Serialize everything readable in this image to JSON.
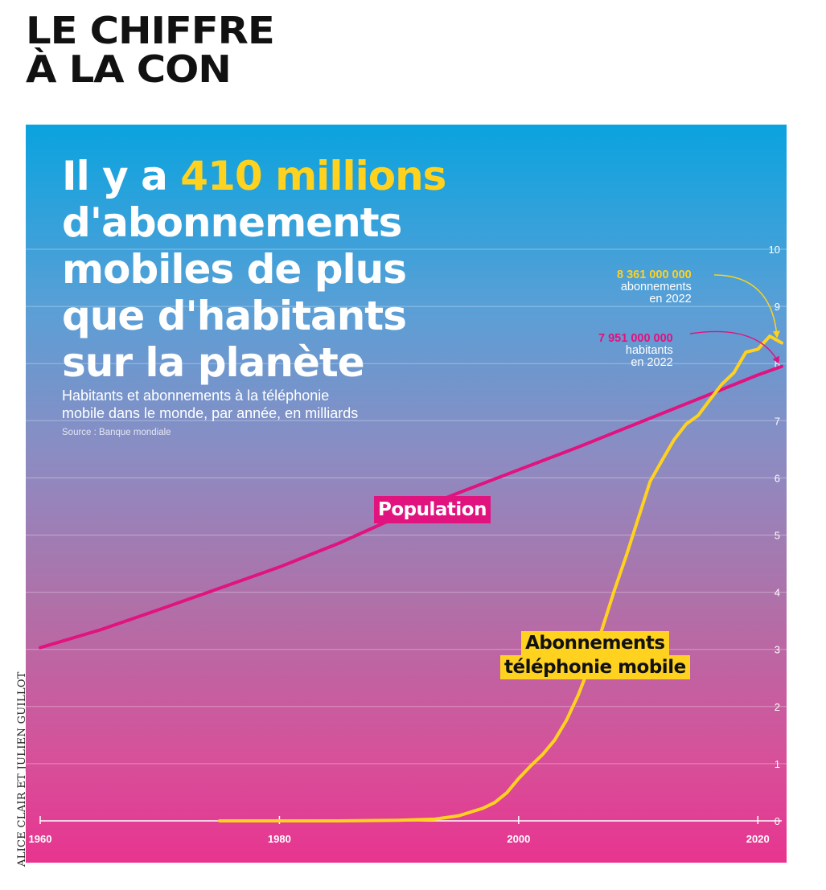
{
  "header": {
    "line1": "LE CHIFFRE",
    "line2": "À LA CON"
  },
  "headline": {
    "pre": "Il y a ",
    "highlight": "410 millions",
    "line2": "d'abonnements",
    "line3": "mobiles de plus",
    "line4": "que d'habitants",
    "line5": "sur la planète"
  },
  "subtitle": {
    "line1": "Habitants et abonnements à la téléphonie",
    "line2": "mobile dans le monde, par année, en milliards"
  },
  "source": "Source : Banque mondiale",
  "credit": "ALICE CLAIR ET JULIEN GUILLOT",
  "annotations": {
    "mobile": {
      "value": "8 361 000 000",
      "line1": "abonnements",
      "line2": "en 2022"
    },
    "population": {
      "value": "7 951 000 000",
      "line1": "habitants",
      "line2": "en 2022"
    }
  },
  "colors": {
    "population": "#e0137f",
    "mobile": "#ffd21f",
    "text": "#ffffff"
  },
  "chart_data": {
    "type": "line",
    "title": "",
    "xlabel": "",
    "ylabel": "",
    "xlim": [
      1960,
      2022
    ],
    "ylim": [
      0,
      10
    ],
    "x_ticks": [
      1960,
      1980,
      2000,
      2020
    ],
    "y_ticks": [
      0,
      1,
      2,
      3,
      4,
      5,
      6,
      7,
      8,
      9,
      10
    ],
    "y_axis_position": "right",
    "grid": true,
    "series": [
      {
        "name": "Population",
        "x": [
          1960,
          1965,
          1970,
          1975,
          1980,
          1985,
          1990,
          1995,
          2000,
          2005,
          2010,
          2015,
          2020,
          2022
        ],
        "values": [
          3.03,
          3.34,
          3.7,
          4.07,
          4.44,
          4.86,
          5.33,
          5.74,
          6.14,
          6.54,
          6.96,
          7.38,
          7.8,
          7.951
        ]
      },
      {
        "name": "Abonnements téléphonie mobile",
        "x": [
          1975,
          1980,
          1985,
          1990,
          1993,
          1995,
          1997,
          1998,
          1999,
          2000,
          2001,
          2002,
          2003,
          2004,
          2005,
          2006,
          2007,
          2008,
          2009,
          2010,
          2011,
          2012,
          2013,
          2014,
          2015,
          2016,
          2017,
          2018,
          2019,
          2020,
          2021,
          2022
        ],
        "values": [
          0.0,
          0.0,
          0.0,
          0.01,
          0.03,
          0.09,
          0.22,
          0.32,
          0.49,
          0.74,
          0.96,
          1.16,
          1.41,
          1.76,
          2.21,
          2.75,
          3.37,
          4.03,
          4.64,
          5.29,
          5.94,
          6.31,
          6.67,
          6.94,
          7.09,
          7.37,
          7.64,
          7.84,
          8.2,
          8.25,
          8.48,
          8.361
        ]
      }
    ]
  }
}
